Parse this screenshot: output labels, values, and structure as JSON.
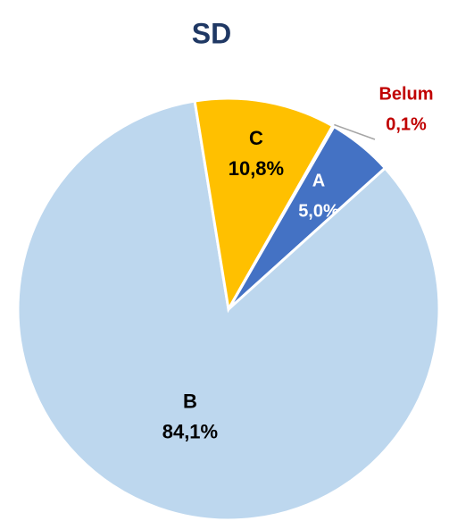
{
  "chart_data": {
    "type": "pie",
    "title": "SD",
    "categories": [
      "A",
      "B",
      "C",
      "Belum"
    ],
    "values": [
      5.0,
      84.1,
      10.8,
      0.1
    ],
    "value_labels": [
      "5,0%",
      "84,1%",
      "10,8%",
      "0,1%"
    ],
    "colors": [
      "#4472c4",
      "#bdd7ee",
      "#ffc000",
      "#a5a5a5"
    ]
  }
}
